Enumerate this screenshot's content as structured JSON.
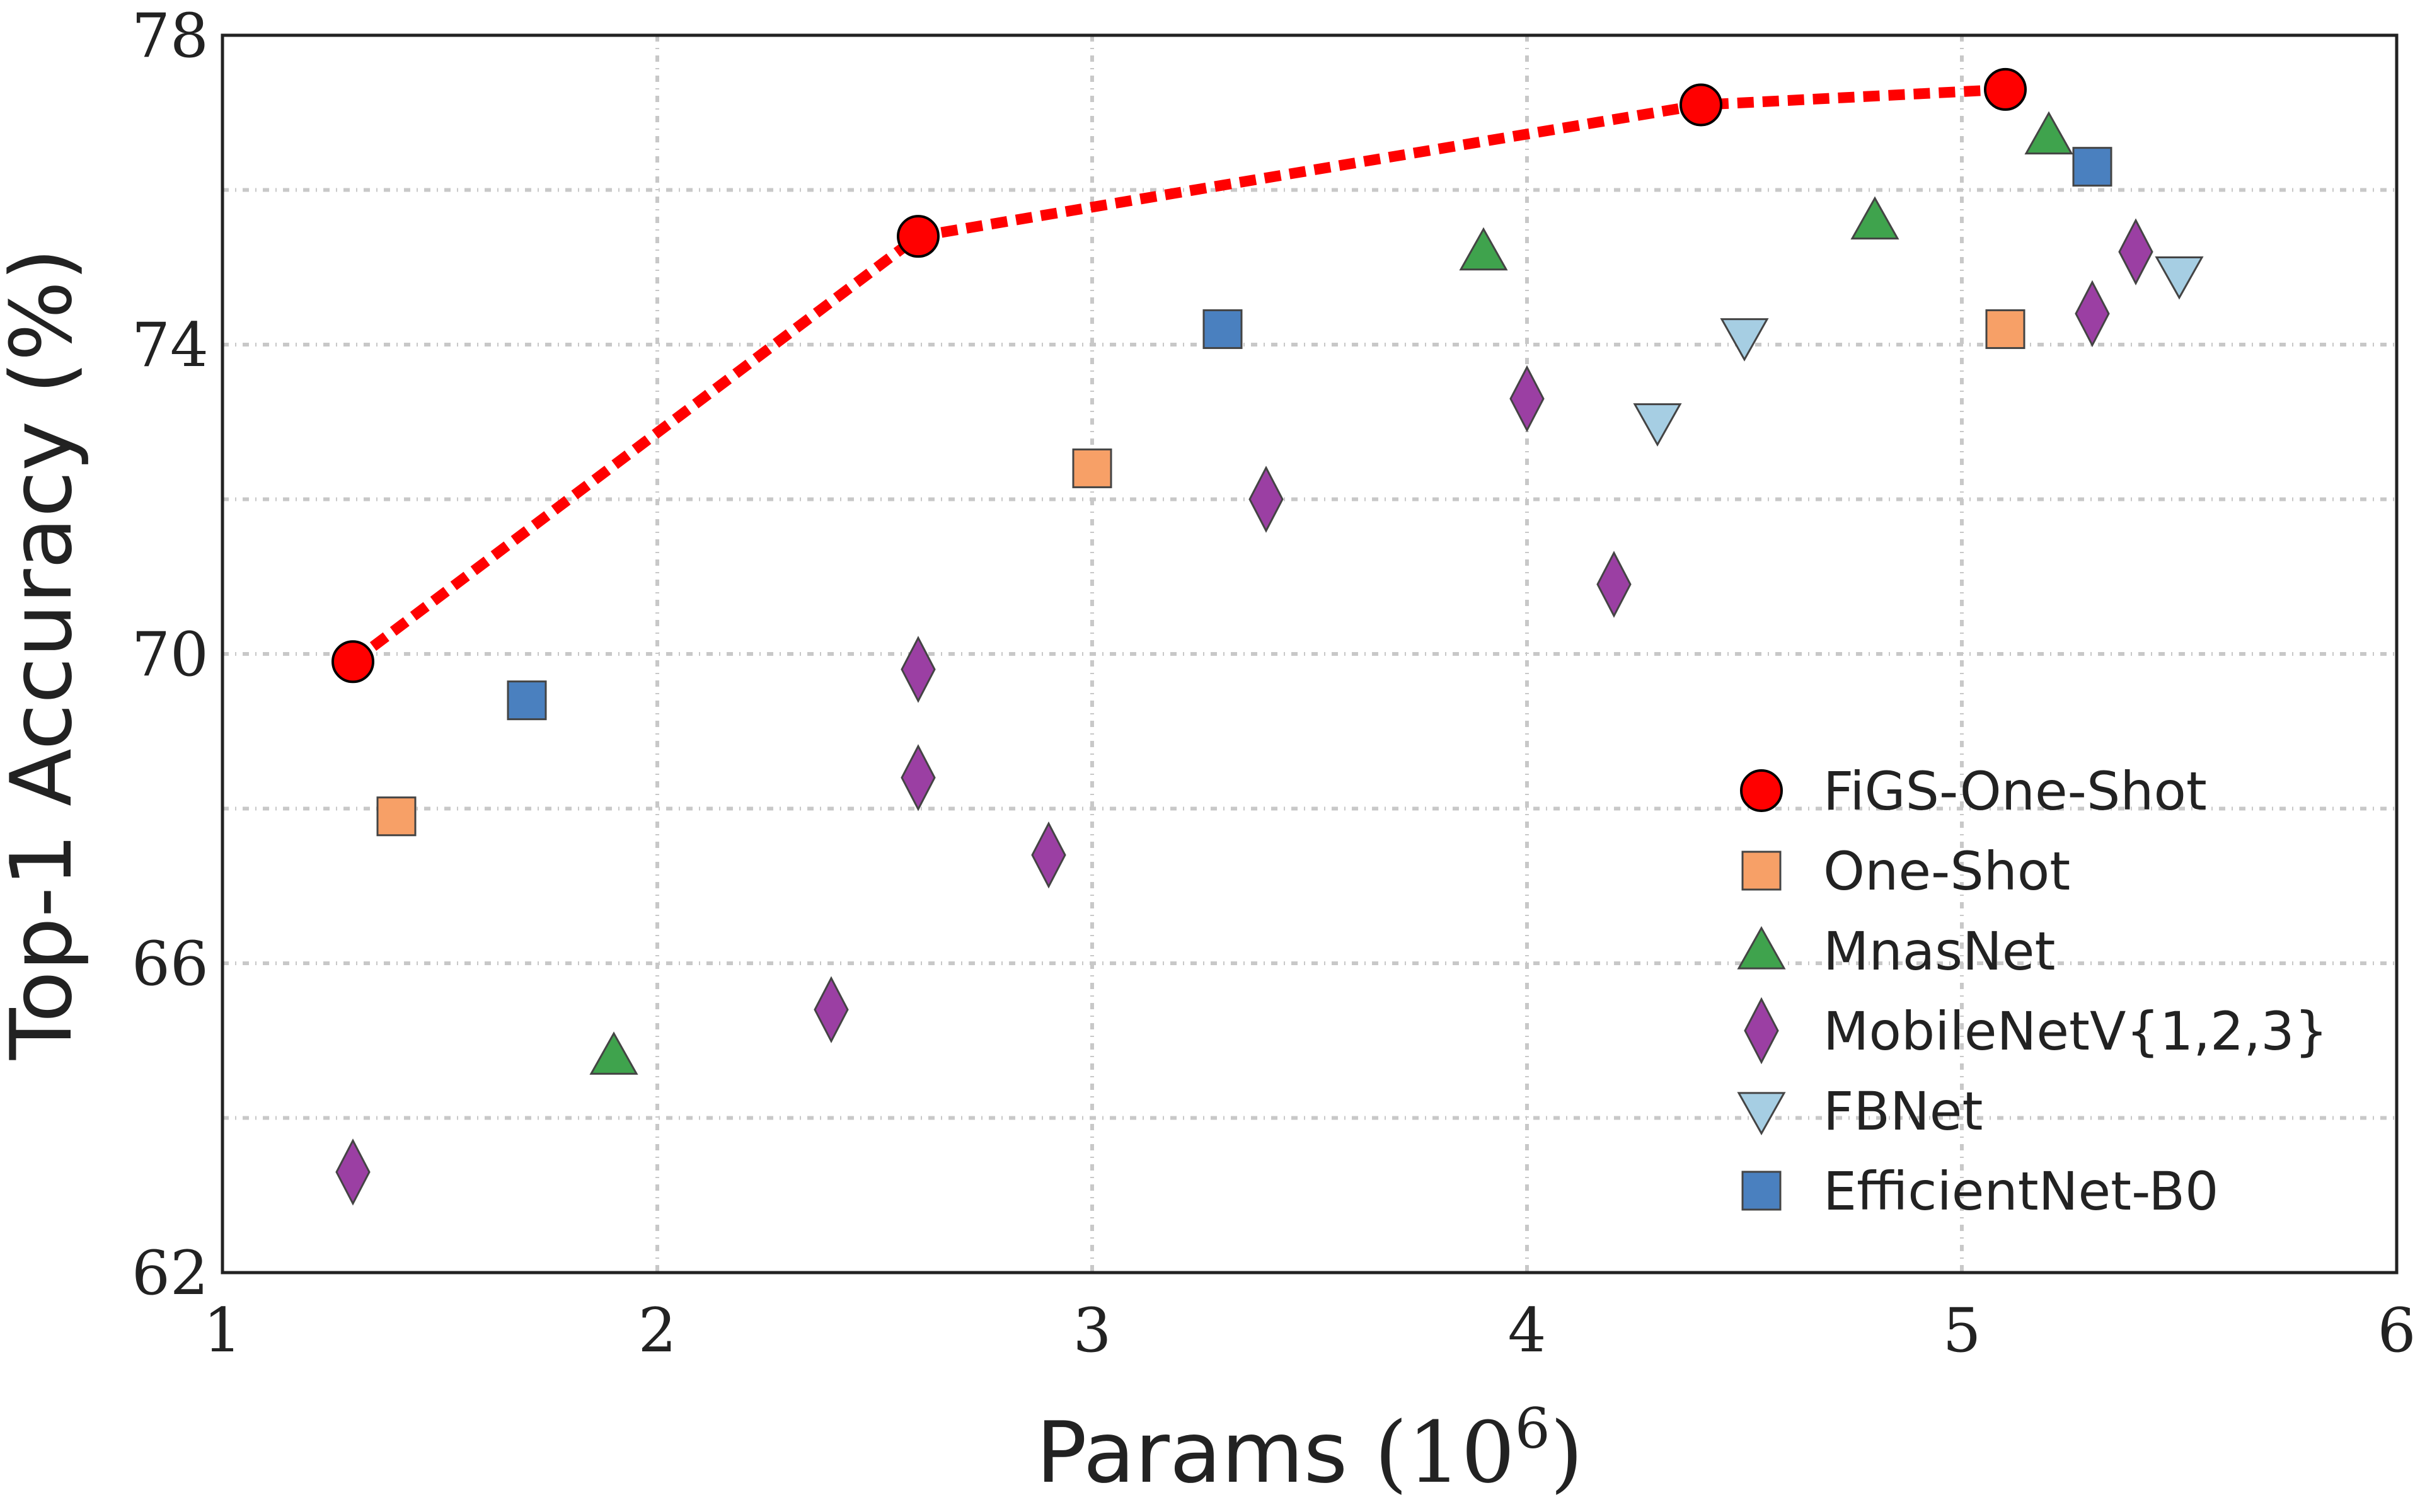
{
  "chart_data": {
    "type": "scatter",
    "title": "",
    "xlabel": "Params",
    "xlabel_unit": "(10",
    "xlabel_exp": "6",
    "xlabel_close": ")",
    "ylabel": "Top-1 Accuracy (%)",
    "xlim": [
      1,
      6
    ],
    "ylim": [
      62,
      78
    ],
    "xticks": [
      1,
      2,
      3,
      4,
      5,
      6
    ],
    "yticks": [
      62,
      66,
      70,
      74,
      78
    ],
    "y_minor_gridlines": [
      64,
      68,
      72,
      76
    ],
    "grid": true,
    "legend_position": "lower right",
    "series": [
      {
        "name": "FiGS-One-Shot",
        "marker": "circle",
        "color": "#ff0000",
        "line": "dashed",
        "points": [
          [
            1.3,
            69.9
          ],
          [
            2.6,
            75.4
          ],
          [
            4.4,
            77.1
          ],
          [
            5.1,
            77.3
          ]
        ]
      },
      {
        "name": "One-Shot",
        "marker": "square",
        "color": "#f7a067",
        "points": [
          [
            1.4,
            67.9
          ],
          [
            3.0,
            72.4
          ],
          [
            5.1,
            74.2
          ]
        ]
      },
      {
        "name": "MnasNet",
        "marker": "triangle-up",
        "color": "#3fa34d",
        "points": [
          [
            1.9,
            64.8
          ],
          [
            3.9,
            75.2
          ],
          [
            4.8,
            75.6
          ],
          [
            5.2,
            76.7
          ]
        ]
      },
      {
        "name": "MobileNetV{1,2,3}",
        "marker": "diamond",
        "color": "#9b3fa3",
        "points": [
          [
            1.3,
            63.3
          ],
          [
            2.4,
            65.4
          ],
          [
            2.6,
            69.8
          ],
          [
            2.6,
            68.4
          ],
          [
            2.9,
            67.4
          ],
          [
            3.4,
            72.0
          ],
          [
            4.0,
            73.3
          ],
          [
            4.2,
            70.9
          ],
          [
            5.3,
            74.4
          ],
          [
            5.4,
            75.2
          ]
        ]
      },
      {
        "name": "FBNet",
        "marker": "triangle-down",
        "color": "#a6cee3",
        "points": [
          [
            4.3,
            73.0
          ],
          [
            4.5,
            74.1
          ],
          [
            5.5,
            74.9
          ]
        ]
      },
      {
        "name": "EfficientNet-B0",
        "marker": "square",
        "color": "#4a80bf",
        "points": [
          [
            1.7,
            69.4
          ],
          [
            3.3,
            74.2
          ],
          [
            5.3,
            76.3
          ]
        ]
      }
    ]
  }
}
